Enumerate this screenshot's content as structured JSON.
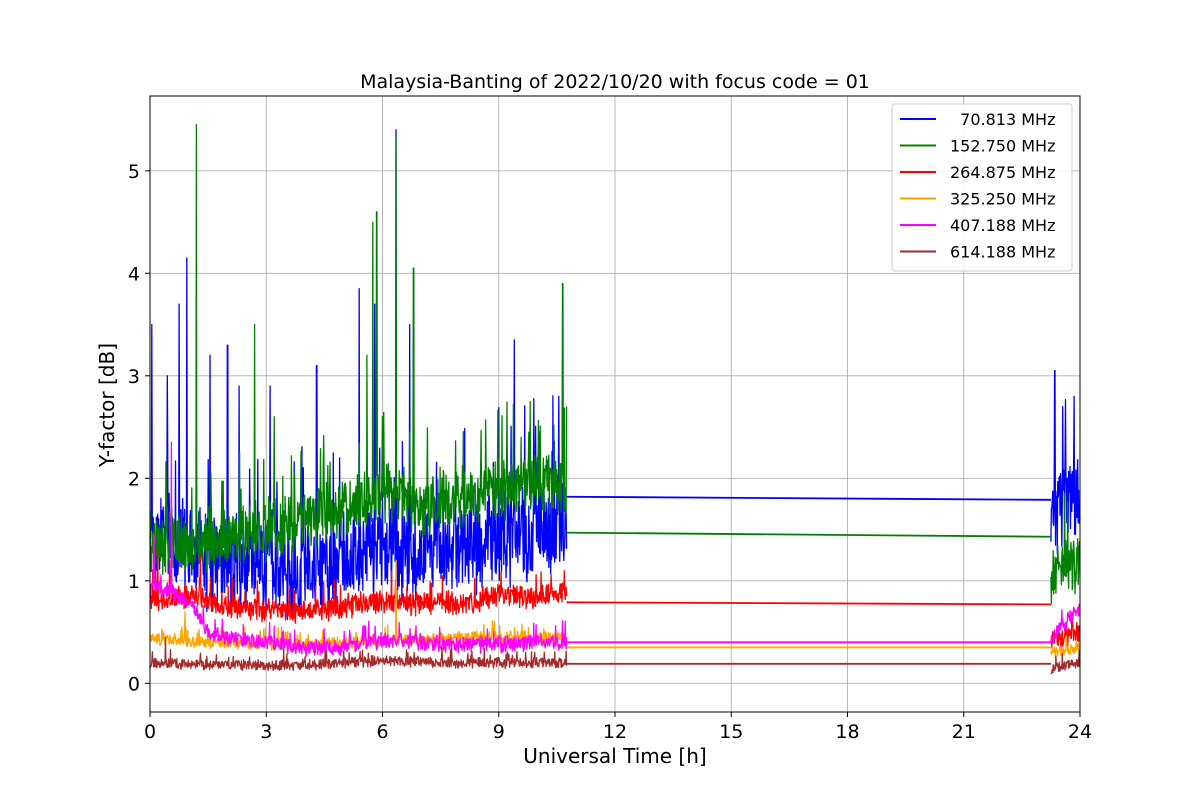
{
  "chart_data": {
    "type": "line",
    "title": "Malaysia-Banting of 2022/10/20 with focus code = 01",
    "xlabel": "Universal Time [h]",
    "ylabel": "Y-factor [dB]",
    "xlim": [
      0,
      24
    ],
    "ylim": [
      -0.28,
      5.73
    ],
    "xticks": [
      0,
      3,
      6,
      9,
      12,
      15,
      18,
      21,
      24
    ],
    "yticks": [
      0,
      1,
      2,
      3,
      4,
      5
    ],
    "grid": true,
    "legend_position": "top-right",
    "series": [
      {
        "name": "  70.813 MHz",
        "color": "#0000ff",
        "noisy_segments": [
          [
            0.0,
            10.75
          ],
          [
            23.25,
            24.0
          ]
        ],
        "baseline": [
          [
            0.0,
            1.5
          ],
          [
            1.0,
            1.3
          ],
          [
            2.0,
            1.15
          ],
          [
            3.0,
            1.2
          ],
          [
            4.0,
            1.1
          ],
          [
            5.0,
            1.25
          ],
          [
            6.0,
            1.35
          ],
          [
            7.0,
            1.3
          ],
          [
            8.0,
            1.35
          ],
          [
            9.0,
            1.45
          ],
          [
            10.0,
            1.5
          ],
          [
            10.75,
            1.65
          ],
          [
            23.25,
            1.7
          ],
          [
            24.0,
            1.85
          ]
        ],
        "noise_amplitude": 0.55,
        "linear_segment": [
          [
            10.75,
            1.82
          ],
          [
            23.25,
            1.79
          ]
        ],
        "peaks": [
          [
            0.05,
            3.5
          ],
          [
            0.45,
            3.0
          ],
          [
            0.75,
            3.7
          ],
          [
            0.95,
            4.15
          ],
          [
            1.55,
            3.2
          ],
          [
            2.0,
            3.3
          ],
          [
            2.3,
            2.9
          ],
          [
            3.1,
            2.9
          ],
          [
            4.3,
            3.1
          ],
          [
            5.4,
            3.85
          ],
          [
            5.8,
            3.7
          ],
          [
            6.35,
            5.4
          ],
          [
            6.7,
            3.5
          ],
          [
            9.4,
            3.35
          ],
          [
            10.55,
            2.8
          ],
          [
            23.35,
            3.05
          ],
          [
            23.55,
            2.7
          ],
          [
            23.85,
            2.8
          ]
        ]
      },
      {
        "name": "152.750 MHz",
        "color": "#008000",
        "noisy_segments": [
          [
            0.0,
            10.75
          ],
          [
            23.25,
            24.0
          ]
        ],
        "baseline": [
          [
            0.0,
            1.35
          ],
          [
            1.0,
            1.4
          ],
          [
            2.0,
            1.4
          ],
          [
            3.0,
            1.5
          ],
          [
            4.0,
            1.6
          ],
          [
            5.0,
            1.7
          ],
          [
            6.0,
            1.85
          ],
          [
            7.0,
            1.75
          ],
          [
            8.0,
            1.8
          ],
          [
            9.0,
            1.9
          ],
          [
            10.0,
            1.95
          ],
          [
            10.75,
            1.85
          ],
          [
            23.25,
            1.1
          ],
          [
            24.0,
            1.2
          ]
        ],
        "noise_amplitude": 0.35,
        "linear_segment": [
          [
            10.75,
            1.47
          ],
          [
            23.25,
            1.43
          ]
        ],
        "peaks": [
          [
            1.2,
            5.45
          ],
          [
            2.7,
            3.5
          ],
          [
            3.2,
            2.6
          ],
          [
            5.6,
            3.2
          ],
          [
            5.75,
            4.5
          ],
          [
            5.85,
            4.6
          ],
          [
            6.35,
            5.35
          ],
          [
            6.8,
            4.05
          ],
          [
            10.65,
            3.9
          ],
          [
            10.75,
            2.7
          ]
        ]
      },
      {
        "name": "264.875 MHz",
        "color": "#ff0000",
        "noisy_segments": [
          [
            0.0,
            10.75
          ],
          [
            23.25,
            24.0
          ]
        ],
        "baseline": [
          [
            0.0,
            0.8
          ],
          [
            1.0,
            0.85
          ],
          [
            2.0,
            0.75
          ],
          [
            3.0,
            0.72
          ],
          [
            4.0,
            0.7
          ],
          [
            5.0,
            0.75
          ],
          [
            6.0,
            0.8
          ],
          [
            7.0,
            0.78
          ],
          [
            8.0,
            0.78
          ],
          [
            9.0,
            0.85
          ],
          [
            10.0,
            0.85
          ],
          [
            10.75,
            0.9
          ],
          [
            23.25,
            0.4
          ],
          [
            24.0,
            0.5
          ]
        ],
        "noise_amplitude": 0.13,
        "linear_segment": [
          [
            10.75,
            0.79
          ],
          [
            23.25,
            0.77
          ]
        ],
        "peaks": [
          [
            0.2,
            1.3
          ],
          [
            0.5,
            1.2
          ],
          [
            1.3,
            1.25
          ]
        ]
      },
      {
        "name": "325.250 MHz",
        "color": "#ffa500",
        "noisy_segments": [
          [
            0.0,
            10.75
          ],
          [
            23.25,
            24.0
          ]
        ],
        "baseline": [
          [
            0.0,
            0.45
          ],
          [
            1.0,
            0.4
          ],
          [
            2.0,
            0.4
          ],
          [
            3.0,
            0.38
          ],
          [
            4.0,
            0.38
          ],
          [
            5.0,
            0.4
          ],
          [
            6.0,
            0.42
          ],
          [
            7.0,
            0.42
          ],
          [
            8.0,
            0.45
          ],
          [
            9.0,
            0.45
          ],
          [
            10.0,
            0.45
          ],
          [
            10.75,
            0.45
          ],
          [
            23.25,
            0.3
          ],
          [
            24.0,
            0.35
          ]
        ],
        "noise_amplitude": 0.07,
        "linear_segment": [
          [
            10.75,
            0.35
          ],
          [
            23.25,
            0.35
          ]
        ],
        "peaks": [
          [
            6.35,
            1.2
          ],
          [
            0.9,
            0.7
          ]
        ]
      },
      {
        "name": "407.188 MHz",
        "color": "#ff00ff",
        "noisy_segments": [
          [
            0.0,
            10.75
          ],
          [
            23.25,
            24.0
          ]
        ],
        "baseline": [
          [
            0.0,
            0.95
          ],
          [
            0.5,
            0.9
          ],
          [
            1.0,
            0.8
          ],
          [
            1.5,
            0.5
          ],
          [
            2.0,
            0.45
          ],
          [
            3.0,
            0.4
          ],
          [
            4.0,
            0.35
          ],
          [
            5.0,
            0.35
          ],
          [
            6.0,
            0.42
          ],
          [
            7.0,
            0.4
          ],
          [
            8.0,
            0.38
          ],
          [
            9.0,
            0.38
          ],
          [
            10.0,
            0.4
          ],
          [
            10.75,
            0.4
          ],
          [
            23.25,
            0.45
          ],
          [
            24.0,
            0.75
          ]
        ],
        "noise_amplitude": 0.09,
        "linear_segment": [
          [
            10.75,
            0.4
          ],
          [
            23.25,
            0.4
          ]
        ],
        "peaks": [
          [
            0.55,
            2.35
          ],
          [
            0.1,
            1.45
          ]
        ]
      },
      {
        "name": "614.188 MHz",
        "color": "#a52a2a",
        "noisy_segments": [
          [
            0.0,
            10.75
          ],
          [
            23.25,
            24.0
          ]
        ],
        "baseline": [
          [
            0.0,
            0.2
          ],
          [
            2.0,
            0.18
          ],
          [
            4.0,
            0.18
          ],
          [
            6.0,
            0.22
          ],
          [
            8.0,
            0.2
          ],
          [
            10.0,
            0.2
          ],
          [
            10.75,
            0.2
          ],
          [
            23.25,
            0.15
          ],
          [
            24.0,
            0.2
          ]
        ],
        "noise_amplitude": 0.06,
        "linear_segment": [
          [
            10.75,
            0.19
          ],
          [
            23.25,
            0.19
          ]
        ],
        "peaks": [
          [
            0.4,
            0.45
          ]
        ]
      }
    ]
  }
}
